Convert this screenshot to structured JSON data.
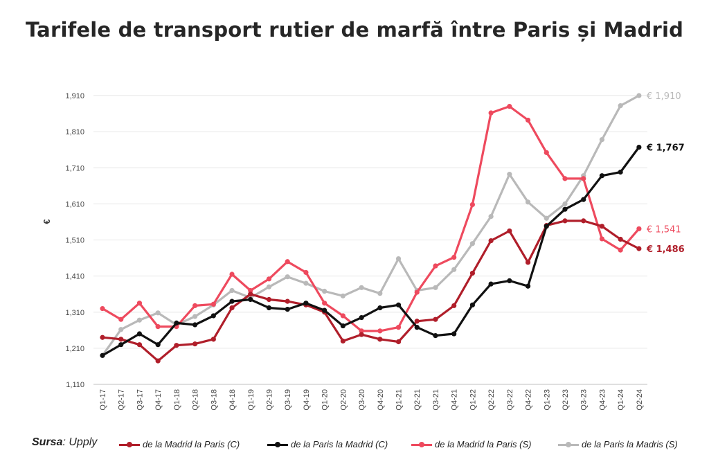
{
  "title": "Tarifele de transport rutier de marfă între Paris și Madrid",
  "source": {
    "label": "Sursa",
    "value": "Upply"
  },
  "chart_data": {
    "type": "line",
    "title": "Tarifele de transport rutier de marfă între Paris și Madrid",
    "ylabel": "€",
    "xlabel": "",
    "ylim": [
      1110,
      1910
    ],
    "yticks": [
      1110,
      1210,
      1310,
      1410,
      1510,
      1610,
      1710,
      1810,
      1910
    ],
    "ytick_labels": [
      "1,110",
      "1,210",
      "1,310",
      "1,410",
      "1,510",
      "1,610",
      "1,710",
      "1,810",
      "1,910"
    ],
    "grid": true,
    "legend_position": "bottom",
    "categories": [
      "Q1-17",
      "Q2-17",
      "Q3-17",
      "Q4-17",
      "Q1-18",
      "Q2-18",
      "Q3-18",
      "Q4-18",
      "Q1-19",
      "Q2-19",
      "Q3-19",
      "Q4-19",
      "Q1-20",
      "Q2-20",
      "Q3-20",
      "Q4-20",
      "Q1-21",
      "Q2-21",
      "Q3-21",
      "Q4-21",
      "Q1-22",
      "Q2-22",
      "Q3-22",
      "Q4-22",
      "Q1-23",
      "Q2-23",
      "Q3-23",
      "Q4-23",
      "Q1-24",
      "Q2-24"
    ],
    "series": [
      {
        "name": "de la Madrid la Paris (C)",
        "color": "#b01e2a",
        "values": [
          1240,
          1235,
          1220,
          1175,
          1218,
          1222,
          1235,
          1322,
          1360,
          1345,
          1340,
          1330,
          1310,
          1230,
          1248,
          1235,
          1228,
          1285,
          1290,
          1328,
          1418,
          1508,
          1535,
          1448,
          1550,
          1563,
          1563,
          1548,
          1512,
          1486
        ],
        "end_label": "€ 1,486"
      },
      {
        "name": "de la Paris la Madrid (C)",
        "color": "#111111",
        "values": [
          1190,
          1220,
          1250,
          1220,
          1280,
          1275,
          1300,
          1340,
          1345,
          1322,
          1318,
          1335,
          1315,
          1272,
          1295,
          1322,
          1330,
          1268,
          1245,
          1250,
          1330,
          1388,
          1397,
          1382,
          1548,
          1595,
          1622,
          1688,
          1698,
          1767
        ],
        "end_label": "€ 1,767"
      },
      {
        "name": "de la Madrid la Paris (S)",
        "color": "#ee4a5e",
        "values": [
          1320,
          1290,
          1335,
          1270,
          1270,
          1328,
          1332,
          1415,
          1370,
          1402,
          1450,
          1420,
          1335,
          1300,
          1258,
          1258,
          1268,
          1365,
          1438,
          1462,
          1608,
          1862,
          1880,
          1842,
          1752,
          1680,
          1680,
          1513,
          1482,
          1541
        ],
        "end_label": "€ 1,541"
      },
      {
        "name": "de la Paris la Madris (S)",
        "color": "#b9b9b9",
        "values": [
          1190,
          1262,
          1288,
          1308,
          1275,
          1298,
          1330,
          1370,
          1350,
          1380,
          1408,
          1390,
          1368,
          1355,
          1378,
          1362,
          1458,
          1370,
          1378,
          1428,
          1500,
          1575,
          1692,
          1615,
          1570,
          1610,
          1688,
          1788,
          1882,
          1910
        ],
        "end_label": "€ 1,910"
      }
    ]
  }
}
